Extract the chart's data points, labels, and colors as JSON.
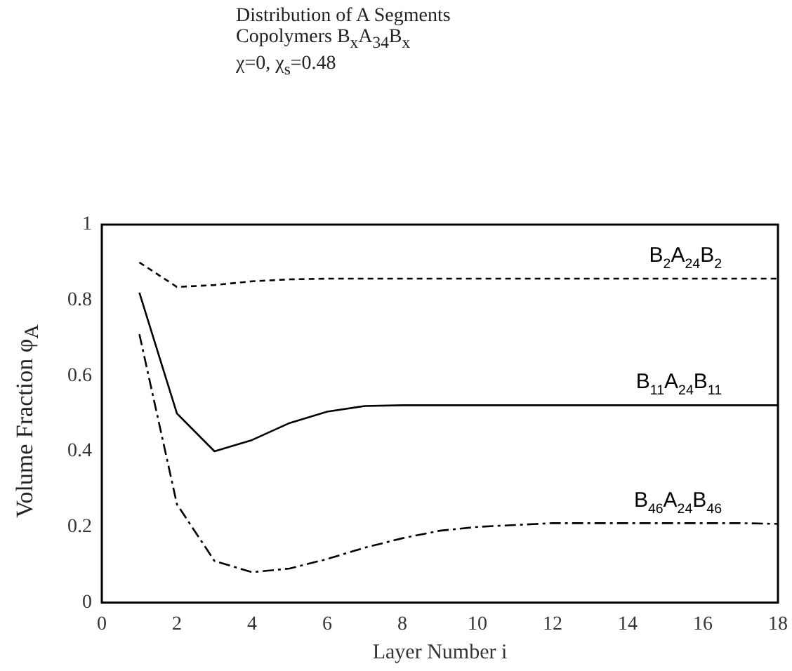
{
  "chart_data": {
    "type": "line",
    "title": "Distribution of A Segments",
    "subtitle": "Copolymers B$_{x}$A$_{34}$B$_{x}$\nχ=0, χ$_{s}$=0.48",
    "xlabel": "Layer Number i",
    "ylabel": "Volume Fraction φ$_{A}$",
    "x": [
      1,
      2,
      3,
      4,
      5,
      6,
      7,
      8,
      9,
      10,
      11,
      12,
      13,
      14,
      15,
      16,
      17,
      18
    ],
    "xlim": [
      0,
      18
    ],
    "xticks": [
      0,
      2,
      4,
      6,
      8,
      10,
      12,
      14,
      16,
      18
    ],
    "ylim": [
      0,
      1
    ],
    "yticks": [
      0,
      0.2,
      0.4,
      0.6,
      0.8,
      1
    ],
    "grid": false,
    "legend": false,
    "marker": "none",
    "series": [
      {
        "name": "B$_{2}$A$_{24}$B$_{2}$",
        "color": "#000000",
        "line_style": "dashed",
        "values": [
          0.9,
          0.835,
          0.84,
          0.85,
          0.855,
          0.857,
          0.857,
          0.857,
          0.857,
          0.857,
          0.857,
          0.857,
          0.857,
          0.857,
          0.857,
          0.857,
          0.857,
          0.857
        ]
      },
      {
        "name": "B$_{11}$A$_{24}$B$_{11}$",
        "color": "#000000",
        "line_style": "solid",
        "values": [
          0.82,
          0.5,
          0.4,
          0.43,
          0.475,
          0.505,
          0.52,
          0.522,
          0.522,
          0.522,
          0.522,
          0.522,
          0.522,
          0.522,
          0.522,
          0.522,
          0.522,
          0.522
        ]
      },
      {
        "name": "B$_{46}$A$_{24}$B$_{46}$",
        "color": "#000000",
        "line_style": "dashdot",
        "values": [
          0.71,
          0.26,
          0.11,
          0.08,
          0.09,
          0.115,
          0.145,
          0.17,
          0.19,
          0.2,
          0.205,
          0.21,
          0.21,
          0.21,
          0.21,
          0.21,
          0.21,
          0.208
        ]
      }
    ]
  }
}
